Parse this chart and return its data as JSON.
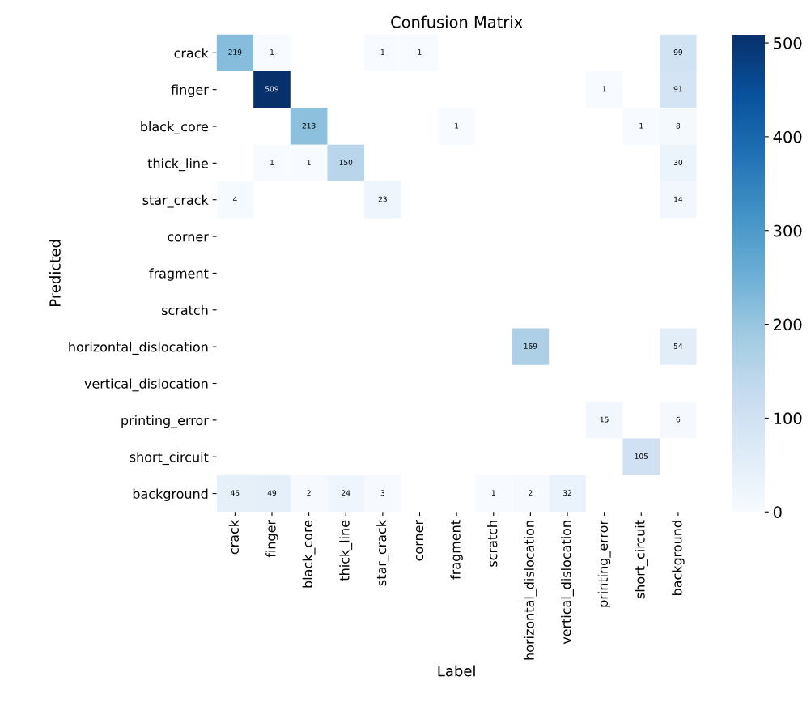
{
  "chart_data": {
    "type": "heatmap",
    "title": "Confusion Matrix",
    "xlabel": "Label",
    "ylabel": "Predicted",
    "categories": [
      "crack",
      "finger",
      "black_core",
      "thick_line",
      "star_crack",
      "corner",
      "fragment",
      "scratch",
      "horizontal_dislocation",
      "vertical_dislocation",
      "printing_error",
      "short_circuit",
      "background"
    ],
    "y_categories": [
      "crack",
      "finger",
      "black_core",
      "thick_line",
      "star_crack",
      "corner",
      "fragment",
      "scratch",
      "horizontal_dislocation",
      "vertical_dislocation",
      "printing_error",
      "short_circuit",
      "background"
    ],
    "cells": [
      [
        219,
        1,
        null,
        null,
        1,
        1,
        null,
        null,
        null,
        null,
        null,
        null,
        99
      ],
      [
        null,
        509,
        null,
        null,
        null,
        null,
        null,
        null,
        null,
        null,
        1,
        null,
        91
      ],
      [
        null,
        null,
        213,
        null,
        null,
        null,
        1,
        null,
        null,
        null,
        null,
        1,
        8
      ],
      [
        null,
        1,
        1,
        150,
        null,
        null,
        null,
        null,
        null,
        null,
        null,
        null,
        30
      ],
      [
        4,
        null,
        null,
        null,
        23,
        null,
        null,
        null,
        null,
        null,
        null,
        null,
        14
      ],
      [
        null,
        null,
        null,
        null,
        null,
        null,
        null,
        null,
        null,
        null,
        null,
        null,
        null
      ],
      [
        null,
        null,
        null,
        null,
        null,
        null,
        null,
        null,
        null,
        null,
        null,
        null,
        null
      ],
      [
        null,
        null,
        null,
        null,
        null,
        null,
        null,
        null,
        null,
        null,
        null,
        null,
        null
      ],
      [
        null,
        null,
        null,
        null,
        null,
        null,
        null,
        null,
        169,
        null,
        null,
        null,
        54
      ],
      [
        null,
        null,
        null,
        null,
        null,
        null,
        null,
        null,
        null,
        null,
        null,
        null,
        null
      ],
      [
        null,
        null,
        null,
        null,
        null,
        null,
        null,
        null,
        null,
        null,
        15,
        null,
        6
      ],
      [
        null,
        null,
        null,
        null,
        null,
        null,
        null,
        null,
        null,
        null,
        null,
        105,
        null
      ],
      [
        45,
        49,
        2,
        24,
        3,
        null,
        null,
        1,
        2,
        32,
        null,
        null,
        null
      ]
    ],
    "clim": [
      0,
      509
    ],
    "cticks": [
      0,
      100,
      200,
      300,
      400,
      500
    ],
    "data_labels": true
  }
}
